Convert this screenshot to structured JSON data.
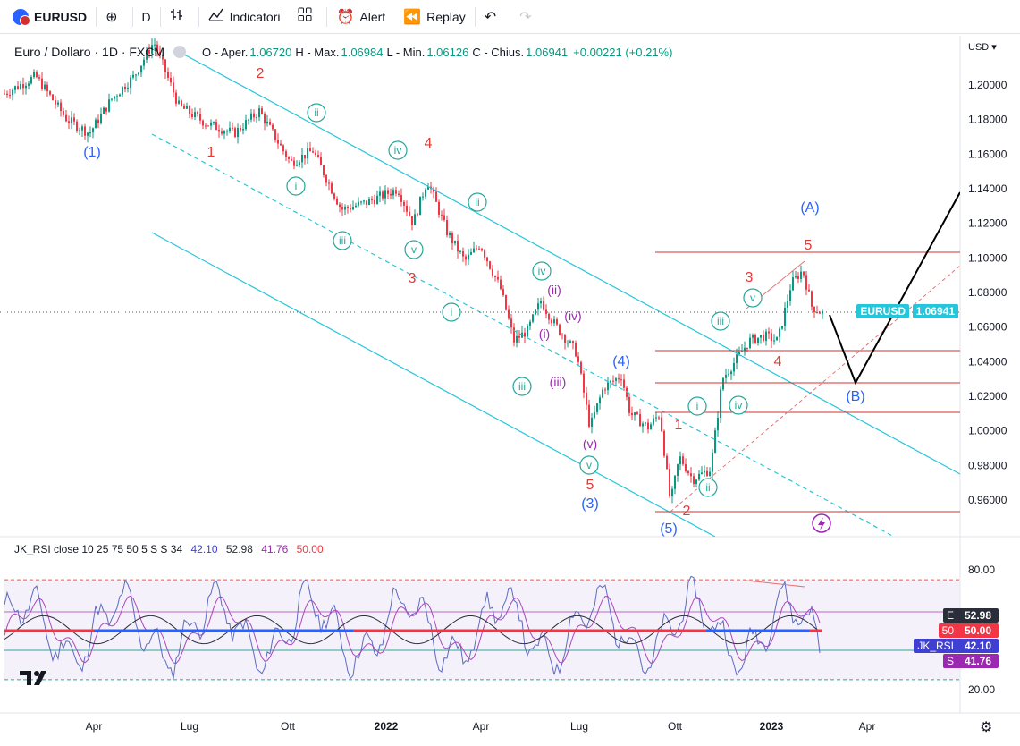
{
  "toolbar": {
    "symbol": "EURUSD",
    "interval": "D",
    "indicators_label": "Indicatori",
    "alert_label": "Alert",
    "replay_label": "Replay"
  },
  "legend": {
    "title": "Euro / Dollaro · 1D · FXCM",
    "open_label": "O - Aper.",
    "open_value": "1.06720",
    "high_label": "H - Max.",
    "high_value": "1.06984",
    "low_label": "L - Min.",
    "low_value": "1.06126",
    "close_label": "C - Chius.",
    "close_value": "1.06941",
    "change_value": "+0.00221 (+0.21%)"
  },
  "price_axis": {
    "currency": "USD",
    "ticks": [
      "1.20000",
      "1.18000",
      "1.16000",
      "1.14000",
      "1.12000",
      "1.10000",
      "1.08000",
      "1.06000",
      "1.04000",
      "1.02000",
      "1.00000",
      "0.98000",
      "0.96000"
    ],
    "current_symbol": "EURUSD",
    "current_price": "1.06941"
  },
  "time_axis": {
    "ticks": [
      "Apr",
      "Lug",
      "Ott",
      "2022",
      "Apr",
      "Lug",
      "Ott",
      "2023",
      "Apr"
    ]
  },
  "rsi": {
    "legend": "JK_RSI close 10 25 75 50 5 S S 34",
    "values": [
      "42.10",
      "52.98",
      "41.76",
      "50.00"
    ],
    "axis_ticks": [
      "80.00",
      "20.00"
    ],
    "tags": [
      {
        "label": "E",
        "value": "52.98",
        "color": "#2a2e39"
      },
      {
        "label": "50",
        "value": "50.00",
        "color": "#f23645"
      },
      {
        "label": "JK_RSI",
        "value": "42.10",
        "color": "#3f3fd1"
      },
      {
        "label": "S",
        "value": "41.76",
        "color": "#9c27b0"
      }
    ]
  },
  "wave_labels": {
    "w1": "(1)",
    "w3": "(3)",
    "w4": "(4)",
    "w5": "(5)",
    "wA": "(A)",
    "wB": "(B)",
    "r1": "1",
    "r2": "2",
    "r3": "3",
    "r4": "4",
    "r5": "5",
    "g_i": "i",
    "g_ii": "ii",
    "g_iii": "iii",
    "g_iv": "iv",
    "g_v": "v",
    "p_i": "(i)",
    "p_ii": "(ii)",
    "p_iii": "(iii)",
    "p_iv": "(iv)",
    "p_v": "(v)"
  },
  "colors": {
    "up": "#089981",
    "down": "#f23645",
    "channel": "#26c6da",
    "blue": "#2962ff",
    "red": "#e53935",
    "green": "#26a69a",
    "purple": "#9c27b0"
  }
}
